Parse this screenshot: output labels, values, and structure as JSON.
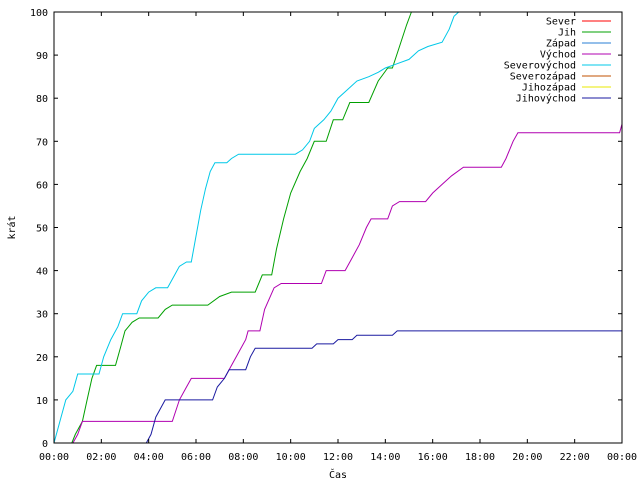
{
  "chart_data": {
    "type": "line",
    "xlabel": "Čas",
    "ylabel": "krát",
    "xlim": [
      0,
      24
    ],
    "ylim": [
      0,
      100
    ],
    "grid": false,
    "legend_position": "top-right",
    "x_ticks": [
      {
        "v": 0,
        "label": "00:00"
      },
      {
        "v": 2,
        "label": "02:00"
      },
      {
        "v": 4,
        "label": "04:00"
      },
      {
        "v": 6,
        "label": "06:00"
      },
      {
        "v": 8,
        "label": "08:00"
      },
      {
        "v": 10,
        "label": "10:00"
      },
      {
        "v": 12,
        "label": "12:00"
      },
      {
        "v": 14,
        "label": "14:00"
      },
      {
        "v": 16,
        "label": "16:00"
      },
      {
        "v": 18,
        "label": "18:00"
      },
      {
        "v": 20,
        "label": "20:00"
      },
      {
        "v": 22,
        "label": "22:00"
      },
      {
        "v": 24,
        "label": "00:00"
      }
    ],
    "y_ticks": [
      {
        "v": 0,
        "label": "0"
      },
      {
        "v": 10,
        "label": "10"
      },
      {
        "v": 20,
        "label": "20"
      },
      {
        "v": 30,
        "label": "30"
      },
      {
        "v": 40,
        "label": "40"
      },
      {
        "v": 50,
        "label": "50"
      },
      {
        "v": 60,
        "label": "60"
      },
      {
        "v": 70,
        "label": "70"
      },
      {
        "v": 80,
        "label": "80"
      },
      {
        "v": 90,
        "label": "90"
      },
      {
        "v": 100,
        "label": "100"
      }
    ],
    "series": [
      {
        "name": "Sever",
        "color": "#ff0000",
        "points": []
      },
      {
        "name": "Jih",
        "color": "#00a000",
        "points": [
          [
            0.75,
            0
          ],
          [
            0.9,
            2
          ],
          [
            1.2,
            5
          ],
          [
            1.4,
            10
          ],
          [
            1.6,
            15
          ],
          [
            1.8,
            18
          ],
          [
            2.6,
            18
          ],
          [
            2.8,
            22
          ],
          [
            3.0,
            26
          ],
          [
            3.3,
            28
          ],
          [
            3.6,
            29
          ],
          [
            4.4,
            29
          ],
          [
            4.7,
            31
          ],
          [
            5.0,
            32
          ],
          [
            6.5,
            32
          ],
          [
            7.0,
            34
          ],
          [
            7.5,
            35
          ],
          [
            8.5,
            35
          ],
          [
            8.8,
            39
          ],
          [
            9.2,
            39
          ],
          [
            9.4,
            45
          ],
          [
            9.7,
            52
          ],
          [
            10.0,
            58
          ],
          [
            10.4,
            63
          ],
          [
            10.7,
            66
          ],
          [
            11.0,
            70
          ],
          [
            11.5,
            70
          ],
          [
            11.8,
            75
          ],
          [
            12.2,
            75
          ],
          [
            12.5,
            79
          ],
          [
            13.3,
            79
          ],
          [
            13.7,
            84
          ],
          [
            14.1,
            87
          ],
          [
            14.3,
            87
          ],
          [
            14.6,
            92
          ],
          [
            14.9,
            97
          ],
          [
            15.1,
            100
          ]
        ]
      },
      {
        "name": "Západ",
        "color": "#2a7fd5",
        "points": []
      },
      {
        "name": "Východ",
        "color": "#b000b0",
        "points": [
          [
            0.8,
            0
          ],
          [
            1.0,
            2
          ],
          [
            1.2,
            5
          ],
          [
            5.0,
            5
          ],
          [
            5.3,
            10
          ],
          [
            5.6,
            13
          ],
          [
            5.8,
            15
          ],
          [
            7.2,
            15
          ],
          [
            7.5,
            18
          ],
          [
            7.8,
            21
          ],
          [
            8.1,
            24
          ],
          [
            8.2,
            26
          ],
          [
            8.7,
            26
          ],
          [
            8.9,
            31
          ],
          [
            9.3,
            36
          ],
          [
            9.6,
            37
          ],
          [
            11.3,
            37
          ],
          [
            11.5,
            40
          ],
          [
            12.3,
            40
          ],
          [
            12.6,
            43
          ],
          [
            12.9,
            46
          ],
          [
            13.2,
            50
          ],
          [
            13.4,
            52
          ],
          [
            14.1,
            52
          ],
          [
            14.3,
            55
          ],
          [
            14.6,
            56
          ],
          [
            15.7,
            56
          ],
          [
            16.0,
            58
          ],
          [
            16.4,
            60
          ],
          [
            16.8,
            62
          ],
          [
            17.3,
            64
          ],
          [
            18.9,
            64
          ],
          [
            19.1,
            66
          ],
          [
            19.4,
            70
          ],
          [
            19.6,
            72
          ],
          [
            23.9,
            72
          ],
          [
            24.0,
            74
          ]
        ]
      },
      {
        "name": "Severovýchod",
        "color": "#00c8e8",
        "points": [
          [
            0,
            0
          ],
          [
            0.25,
            5
          ],
          [
            0.5,
            10
          ],
          [
            0.8,
            12
          ],
          [
            1.0,
            16
          ],
          [
            1.9,
            16
          ],
          [
            2.1,
            20
          ],
          [
            2.4,
            24
          ],
          [
            2.7,
            27
          ],
          [
            2.9,
            30
          ],
          [
            3.5,
            30
          ],
          [
            3.7,
            33
          ],
          [
            4.0,
            35
          ],
          [
            4.3,
            36
          ],
          [
            4.8,
            36
          ],
          [
            5.0,
            38
          ],
          [
            5.3,
            41
          ],
          [
            5.6,
            42
          ],
          [
            5.8,
            42
          ],
          [
            6.0,
            48
          ],
          [
            6.2,
            54
          ],
          [
            6.4,
            59
          ],
          [
            6.6,
            63
          ],
          [
            6.8,
            65
          ],
          [
            7.3,
            65
          ],
          [
            7.5,
            66
          ],
          [
            7.8,
            67
          ],
          [
            10.2,
            67
          ],
          [
            10.5,
            68
          ],
          [
            10.8,
            70
          ],
          [
            11.0,
            73
          ],
          [
            11.4,
            75
          ],
          [
            11.7,
            77
          ],
          [
            12.0,
            80
          ],
          [
            12.4,
            82
          ],
          [
            12.8,
            84
          ],
          [
            13.3,
            85
          ],
          [
            13.7,
            86
          ],
          [
            14.0,
            87
          ],
          [
            14.5,
            88
          ],
          [
            15.0,
            89
          ],
          [
            15.4,
            91
          ],
          [
            15.8,
            92
          ],
          [
            16.4,
            93
          ],
          [
            16.7,
            96
          ],
          [
            16.9,
            99
          ],
          [
            17.1,
            100
          ]
        ]
      },
      {
        "name": "Severozápad",
        "color": "#c05000",
        "points": []
      },
      {
        "name": "Jihozápad",
        "color": "#e8e800",
        "points": []
      },
      {
        "name": "Jihovýchod",
        "color": "#1a1aa0",
        "points": [
          [
            3.9,
            0
          ],
          [
            4.1,
            2
          ],
          [
            4.3,
            6
          ],
          [
            4.5,
            8
          ],
          [
            4.7,
            10
          ],
          [
            6.7,
            10
          ],
          [
            6.9,
            13
          ],
          [
            7.2,
            15
          ],
          [
            7.4,
            17
          ],
          [
            8.1,
            17
          ],
          [
            8.3,
            20
          ],
          [
            8.5,
            22
          ],
          [
            10.9,
            22
          ],
          [
            11.1,
            23
          ],
          [
            11.8,
            23
          ],
          [
            12.0,
            24
          ],
          [
            12.6,
            24
          ],
          [
            12.8,
            25
          ],
          [
            14.3,
            25
          ],
          [
            14.5,
            26
          ],
          [
            24.0,
            26
          ]
        ]
      }
    ]
  }
}
